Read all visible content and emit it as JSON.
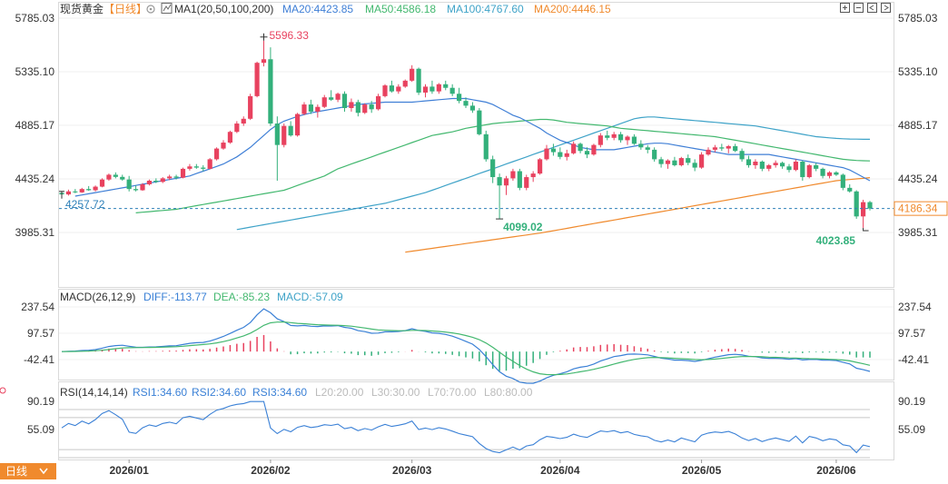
{
  "header": {
    "symbol": "现货黄金",
    "period": "【日线】",
    "ma_label": "MA1(20,50,100,200)",
    "ma20": "MA20:4423.85",
    "ma50": "MA50:4586.18",
    "ma100": "MA100:4767.60",
    "ma200": "MA200:4446.15"
  },
  "macd_header": {
    "label": "MACD(26,12,9)",
    "diff": "DIFF:-113.77",
    "dea": "DEA:-85.23",
    "macd": "MACD:-57.09"
  },
  "rsi_header": {
    "label": "RSI(14,14,14)",
    "rsi1": "RSI1:34.60",
    "rsi2": "RSI2:34.60",
    "rsi3": "RSI3:34.60",
    "l20": "L20:20.00",
    "l30": "L30:30.00",
    "l70": "L70:70.00",
    "l80": "L80:80.00"
  },
  "price_axis": {
    "left_ticks": [
      "5785.03",
      "5335.10",
      "4885.17",
      "4435.24",
      "3985.31"
    ],
    "right_ticks": [
      "5785.03",
      "5335.10",
      "4885.17",
      "4435.24",
      "3985.31"
    ]
  },
  "macd_axis": {
    "ticks": [
      "237.54",
      "97.57",
      "-42.41"
    ]
  },
  "rsi_axis": {
    "ticks": [
      "90.19",
      "55.09"
    ]
  },
  "x_labels": [
    "2026/01",
    "2026/02",
    "2026/03",
    "2026/04",
    "2026/05",
    "2026/06"
  ],
  "annotations": {
    "high": "5596.33",
    "low_mid": "4099.02",
    "low_end": "4023.85",
    "left_price": "4257.72",
    "current_price": "4186.34"
  },
  "footer": {
    "period_tab": "日线"
  },
  "colors": {
    "up": "#e8425f",
    "down": "#33b07b",
    "ma20": "#3f7fd6",
    "ma50": "#43b86f",
    "ma100": "#3fa3c8",
    "ma200": "#f08a2d",
    "diff": "#3a80d6",
    "dea": "#43b86f",
    "accent": "#f08a2d"
  },
  "chart_data": {
    "type": "candlestick",
    "title": "现货黄金",
    "period": "日线",
    "ylim": [
      3985.31,
      5785.03
    ],
    "candles": [
      {
        "o": 4318,
        "h": 4330,
        "l": 4290,
        "c": 4305
      },
      {
        "o": 4305,
        "h": 4345,
        "l": 4295,
        "c": 4330
      },
      {
        "o": 4330,
        "h": 4350,
        "l": 4315,
        "c": 4322
      },
      {
        "o": 4322,
        "h": 4360,
        "l": 4318,
        "c": 4350
      },
      {
        "o": 4350,
        "h": 4375,
        "l": 4335,
        "c": 4340
      },
      {
        "o": 4340,
        "h": 4380,
        "l": 4330,
        "c": 4370
      },
      {
        "o": 4370,
        "h": 4440,
        "l": 4365,
        "c": 4430
      },
      {
        "o": 4430,
        "h": 4480,
        "l": 4420,
        "c": 4470
      },
      {
        "o": 4470,
        "h": 4490,
        "l": 4440,
        "c": 4452
      },
      {
        "o": 4452,
        "h": 4470,
        "l": 4420,
        "c": 4430
      },
      {
        "o": 4430,
        "h": 4460,
        "l": 4330,
        "c": 4350
      },
      {
        "o": 4350,
        "h": 4380,
        "l": 4330,
        "c": 4340
      },
      {
        "o": 4340,
        "h": 4400,
        "l": 4335,
        "c": 4390
      },
      {
        "o": 4390,
        "h": 4430,
        "l": 4380,
        "c": 4420
      },
      {
        "o": 4420,
        "h": 4440,
        "l": 4400,
        "c": 4410
      },
      {
        "o": 4410,
        "h": 4450,
        "l": 4400,
        "c": 4440
      },
      {
        "o": 4440,
        "h": 4470,
        "l": 4425,
        "c": 4455
      },
      {
        "o": 4455,
        "h": 4470,
        "l": 4430,
        "c": 4445
      },
      {
        "o": 4445,
        "h": 4530,
        "l": 4440,
        "c": 4520
      },
      {
        "o": 4520,
        "h": 4560,
        "l": 4505,
        "c": 4540
      },
      {
        "o": 4540,
        "h": 4560,
        "l": 4520,
        "c": 4530
      },
      {
        "o": 4530,
        "h": 4550,
        "l": 4500,
        "c": 4520
      },
      {
        "o": 4520,
        "h": 4610,
        "l": 4515,
        "c": 4600
      },
      {
        "o": 4600,
        "h": 4700,
        "l": 4590,
        "c": 4690
      },
      {
        "o": 4690,
        "h": 4760,
        "l": 4680,
        "c": 4740
      },
      {
        "o": 4740,
        "h": 4840,
        "l": 4730,
        "c": 4830
      },
      {
        "o": 4830,
        "h": 4920,
        "l": 4820,
        "c": 4900
      },
      {
        "o": 4900,
        "h": 4960,
        "l": 4880,
        "c": 4940
      },
      {
        "o": 4940,
        "h": 5150,
        "l": 4930,
        "c": 5130
      },
      {
        "o": 5130,
        "h": 5420,
        "l": 5120,
        "c": 5410
      },
      {
        "o": 5410,
        "h": 5596,
        "l": 5380,
        "c": 5440
      },
      {
        "o": 5440,
        "h": 5540,
        "l": 4880,
        "c": 4900
      },
      {
        "o": 4900,
        "h": 4960,
        "l": 4420,
        "c": 4720
      },
      {
        "o": 4720,
        "h": 4900,
        "l": 4700,
        "c": 4880
      },
      {
        "o": 4880,
        "h": 4920,
        "l": 4790,
        "c": 4800
      },
      {
        "o": 4800,
        "h": 4990,
        "l": 4790,
        "c": 4980
      },
      {
        "o": 4980,
        "h": 5080,
        "l": 4970,
        "c": 5060
      },
      {
        "o": 5060,
        "h": 5100,
        "l": 4980,
        "c": 5000
      },
      {
        "o": 5000,
        "h": 5060,
        "l": 4950,
        "c": 5040
      },
      {
        "o": 5040,
        "h": 5140,
        "l": 5030,
        "c": 5120
      },
      {
        "o": 5120,
        "h": 5180,
        "l": 5090,
        "c": 5100
      },
      {
        "o": 5100,
        "h": 5160,
        "l": 5080,
        "c": 5150
      },
      {
        "o": 5150,
        "h": 5170,
        "l": 5000,
        "c": 5030
      },
      {
        "o": 5030,
        "h": 5110,
        "l": 5000,
        "c": 5080
      },
      {
        "o": 5080,
        "h": 5100,
        "l": 4960,
        "c": 4990
      },
      {
        "o": 4990,
        "h": 5070,
        "l": 4980,
        "c": 5060
      },
      {
        "o": 5060,
        "h": 5090,
        "l": 4990,
        "c": 5020
      },
      {
        "o": 5020,
        "h": 5150,
        "l": 5010,
        "c": 5130
      },
      {
        "o": 5130,
        "h": 5230,
        "l": 5120,
        "c": 5220
      },
      {
        "o": 5220,
        "h": 5260,
        "l": 5160,
        "c": 5170
      },
      {
        "o": 5170,
        "h": 5230,
        "l": 5150,
        "c": 5210
      },
      {
        "o": 5210,
        "h": 5270,
        "l": 5200,
        "c": 5260
      },
      {
        "o": 5260,
        "h": 5390,
        "l": 5250,
        "c": 5360
      },
      {
        "o": 5360,
        "h": 5370,
        "l": 5140,
        "c": 5160
      },
      {
        "o": 5160,
        "h": 5230,
        "l": 5120,
        "c": 5210
      },
      {
        "o": 5210,
        "h": 5260,
        "l": 5150,
        "c": 5170
      },
      {
        "o": 5170,
        "h": 5240,
        "l": 5150,
        "c": 5230
      },
      {
        "o": 5230,
        "h": 5260,
        "l": 5180,
        "c": 5200
      },
      {
        "o": 5200,
        "h": 5230,
        "l": 5130,
        "c": 5150
      },
      {
        "o": 5150,
        "h": 5200,
        "l": 5070,
        "c": 5090
      },
      {
        "o": 5090,
        "h": 5120,
        "l": 5030,
        "c": 5050
      },
      {
        "o": 5050,
        "h": 5080,
        "l": 4990,
        "c": 5010
      },
      {
        "o": 5010,
        "h": 5030,
        "l": 4800,
        "c": 4810
      },
      {
        "o": 4810,
        "h": 4840,
        "l": 4580,
        "c": 4600
      },
      {
        "o": 4600,
        "h": 4630,
        "l": 4400,
        "c": 4450
      },
      {
        "o": 4450,
        "h": 4480,
        "l": 4099,
        "c": 4380
      },
      {
        "o": 4380,
        "h": 4460,
        "l": 4300,
        "c": 4440
      },
      {
        "o": 4440,
        "h": 4520,
        "l": 4420,
        "c": 4500
      },
      {
        "o": 4500,
        "h": 4520,
        "l": 4340,
        "c": 4360
      },
      {
        "o": 4360,
        "h": 4470,
        "l": 4340,
        "c": 4450
      },
      {
        "o": 4450,
        "h": 4500,
        "l": 4410,
        "c": 4480
      },
      {
        "o": 4480,
        "h": 4610,
        "l": 4470,
        "c": 4600
      },
      {
        "o": 4600,
        "h": 4720,
        "l": 4590,
        "c": 4690
      },
      {
        "o": 4690,
        "h": 4730,
        "l": 4630,
        "c": 4660
      },
      {
        "o": 4660,
        "h": 4700,
        "l": 4600,
        "c": 4620
      },
      {
        "o": 4620,
        "h": 4680,
        "l": 4590,
        "c": 4650
      },
      {
        "o": 4650,
        "h": 4750,
        "l": 4640,
        "c": 4730
      },
      {
        "o": 4730,
        "h": 4740,
        "l": 4650,
        "c": 4670
      },
      {
        "o": 4670,
        "h": 4700,
        "l": 4610,
        "c": 4640
      },
      {
        "o": 4640,
        "h": 4730,
        "l": 4630,
        "c": 4720
      },
      {
        "o": 4720,
        "h": 4820,
        "l": 4700,
        "c": 4800
      },
      {
        "o": 4800,
        "h": 4840,
        "l": 4760,
        "c": 4780
      },
      {
        "o": 4780,
        "h": 4830,
        "l": 4760,
        "c": 4810
      },
      {
        "o": 4810,
        "h": 4830,
        "l": 4740,
        "c": 4760
      },
      {
        "o": 4760,
        "h": 4800,
        "l": 4720,
        "c": 4790
      },
      {
        "o": 4790,
        "h": 4810,
        "l": 4720,
        "c": 4730
      },
      {
        "o": 4730,
        "h": 4760,
        "l": 4680,
        "c": 4700
      },
      {
        "o": 4700,
        "h": 4720,
        "l": 4650,
        "c": 4680
      },
      {
        "o": 4680,
        "h": 4700,
        "l": 4580,
        "c": 4600
      },
      {
        "o": 4600,
        "h": 4620,
        "l": 4530,
        "c": 4560
      },
      {
        "o": 4560,
        "h": 4600,
        "l": 4520,
        "c": 4590
      },
      {
        "o": 4590,
        "h": 4620,
        "l": 4540,
        "c": 4550
      },
      {
        "o": 4550,
        "h": 4620,
        "l": 4540,
        "c": 4610
      },
      {
        "o": 4610,
        "h": 4640,
        "l": 4550,
        "c": 4570
      },
      {
        "o": 4570,
        "h": 4600,
        "l": 4500,
        "c": 4530
      },
      {
        "o": 4530,
        "h": 4660,
        "l": 4520,
        "c": 4640
      },
      {
        "o": 4640,
        "h": 4700,
        "l": 4630,
        "c": 4680
      },
      {
        "o": 4680,
        "h": 4720,
        "l": 4660,
        "c": 4700
      },
      {
        "o": 4700,
        "h": 4730,
        "l": 4670,
        "c": 4690
      },
      {
        "o": 4690,
        "h": 4720,
        "l": 4650,
        "c": 4710
      },
      {
        "o": 4710,
        "h": 4730,
        "l": 4660,
        "c": 4670
      },
      {
        "o": 4670,
        "h": 4690,
        "l": 4580,
        "c": 4600
      },
      {
        "o": 4600,
        "h": 4630,
        "l": 4530,
        "c": 4550
      },
      {
        "o": 4550,
        "h": 4600,
        "l": 4520,
        "c": 4580
      },
      {
        "o": 4580,
        "h": 4590,
        "l": 4500,
        "c": 4520
      },
      {
        "o": 4520,
        "h": 4560,
        "l": 4500,
        "c": 4550
      },
      {
        "o": 4550,
        "h": 4590,
        "l": 4530,
        "c": 4570
      },
      {
        "o": 4570,
        "h": 4580,
        "l": 4520,
        "c": 4540
      },
      {
        "o": 4540,
        "h": 4560,
        "l": 4490,
        "c": 4510
      },
      {
        "o": 4510,
        "h": 4600,
        "l": 4500,
        "c": 4580
      },
      {
        "o": 4580,
        "h": 4590,
        "l": 4420,
        "c": 4450
      },
      {
        "o": 4450,
        "h": 4560,
        "l": 4440,
        "c": 4550
      },
      {
        "o": 4550,
        "h": 4570,
        "l": 4500,
        "c": 4520
      },
      {
        "o": 4520,
        "h": 4530,
        "l": 4440,
        "c": 4460
      },
      {
        "o": 4460,
        "h": 4500,
        "l": 4440,
        "c": 4490
      },
      {
        "o": 4490,
        "h": 4500,
        "l": 4460,
        "c": 4470
      },
      {
        "o": 4470,
        "h": 4480,
        "l": 4340,
        "c": 4360
      },
      {
        "o": 4360,
        "h": 4390,
        "l": 4320,
        "c": 4330
      },
      {
        "o": 4330,
        "h": 4340,
        "l": 4100,
        "c": 4120
      },
      {
        "o": 4120,
        "h": 4260,
        "l": 4023.85,
        "c": 4240
      },
      {
        "o": 4240,
        "h": 4250,
        "l": 4170,
        "c": 4186.34
      }
    ],
    "ma20": [
      4290,
      4300,
      4310,
      4320,
      4330,
      4340,
      4350,
      4360,
      4370,
      4380,
      4390,
      4400,
      4410,
      4420,
      4430,
      4440,
      4450,
      4460,
      4480,
      4500,
      4520,
      4540,
      4560,
      4590,
      4620,
      4660,
      4700,
      4750,
      4800,
      4850,
      4890,
      4920,
      4940,
      4960,
      4975,
      4990,
      5000,
      5010,
      5020,
      5030,
      5040,
      5050,
      5060,
      5065,
      5070,
      5075,
      5080,
      5080,
      5080,
      5080,
      5080,
      5085,
      5090,
      5095,
      5100,
      5105,
      5110,
      5110,
      5110,
      5100,
      5090,
      5080,
      5060,
      5030,
      5000,
      4970,
      4950,
      4920,
      4890,
      4860,
      4820,
      4790,
      4760,
      4740,
      4720,
      4700,
      4690,
      4680,
      4680,
      4680,
      4680,
      4690,
      4700,
      4710,
      4720,
      4730,
      4735,
      4735,
      4730,
      4720,
      4710,
      4700,
      4690,
      4680,
      4670,
      4660,
      4650,
      4640,
      4640,
      4640,
      4640,
      4640,
      4640,
      4640,
      4630,
      4620,
      4610,
      4600,
      4590,
      4580,
      4570,
      4560,
      4550,
      4540,
      4530,
      4510,
      4480,
      4450,
      4420
    ],
    "ma50": [
      4150,
      4155,
      4160,
      4165,
      4170,
      4175,
      4180,
      4190,
      4200,
      4210,
      4220,
      4230,
      4240,
      4250,
      4260,
      4270,
      4280,
      4290,
      4300,
      4310,
      4320,
      4330,
      4340,
      4360,
      4380,
      4400,
      4420,
      4440,
      4460,
      4490,
      4520,
      4540,
      4560,
      4580,
      4600,
      4620,
      4640,
      4660,
      4680,
      4700,
      4720,
      4740,
      4760,
      4780,
      4800,
      4810,
      4820,
      4830,
      4845,
      4860,
      4870,
      4880,
      4890,
      4900,
      4905,
      4910,
      4915,
      4920,
      4925,
      4930,
      4935,
      4935,
      4930,
      4920,
      4910,
      4905,
      4900,
      4895,
      4890,
      4885,
      4880,
      4870,
      4860,
      4855,
      4850,
      4845,
      4840,
      4835,
      4830,
      4825,
      4820,
      4815,
      4810,
      4805,
      4800,
      4795,
      4790,
      4780,
      4770,
      4760,
      4750,
      4740,
      4730,
      4720,
      4710,
      4700,
      4690,
      4680,
      4670,
      4660,
      4650,
      4640,
      4630,
      4620,
      4610,
      4600,
      4595,
      4590,
      4588,
      4586
    ],
    "ma100": [
      4010,
      4020,
      4030,
      4040,
      4050,
      4060,
      4070,
      4080,
      4090,
      4100,
      4110,
      4120,
      4130,
      4140,
      4150,
      4160,
      4170,
      4180,
      4190,
      4200,
      4210,
      4220,
      4230,
      4245,
      4260,
      4275,
      4290,
      4305,
      4320,
      4340,
      4360,
      4380,
      4400,
      4420,
      4440,
      4460,
      4480,
      4500,
      4520,
      4540,
      4560,
      4580,
      4600,
      4620,
      4640,
      4660,
      4680,
      4700,
      4720,
      4740,
      4760,
      4780,
      4800,
      4820,
      4840,
      4860,
      4880,
      4900,
      4920,
      4940,
      4950,
      4955,
      4955,
      4950,
      4945,
      4940,
      4935,
      4930,
      4925,
      4920,
      4915,
      4910,
      4905,
      4900,
      4895,
      4890,
      4885,
      4880,
      4870,
      4860,
      4850,
      4840,
      4830,
      4820,
      4810,
      4800,
      4790,
      4785,
      4780,
      4775,
      4772,
      4770,
      4769,
      4768,
      4767.6
    ],
    "ma200": [
      3820,
      3828,
      3836,
      3844,
      3852,
      3860,
      3868,
      3876,
      3884,
      3892,
      3900,
      3908,
      3916,
      3924,
      3932,
      3940,
      3948,
      3956,
      3964,
      3972,
      3980,
      3990,
      4000,
      4010,
      4020,
      4030,
      4040,
      4050,
      4060,
      4070,
      4080,
      4090,
      4100,
      4110,
      4120,
      4130,
      4140,
      4150,
      4160,
      4170,
      4180,
      4190,
      4200,
      4210,
      4220,
      4230,
      4240,
      4250,
      4260,
      4270,
      4280,
      4290,
      4300,
      4310,
      4320,
      4330,
      4340,
      4350,
      4360,
      4370,
      4380,
      4390,
      4400,
      4410,
      4420,
      4425,
      4430,
      4435,
      4440,
      4446.15
    ]
  }
}
